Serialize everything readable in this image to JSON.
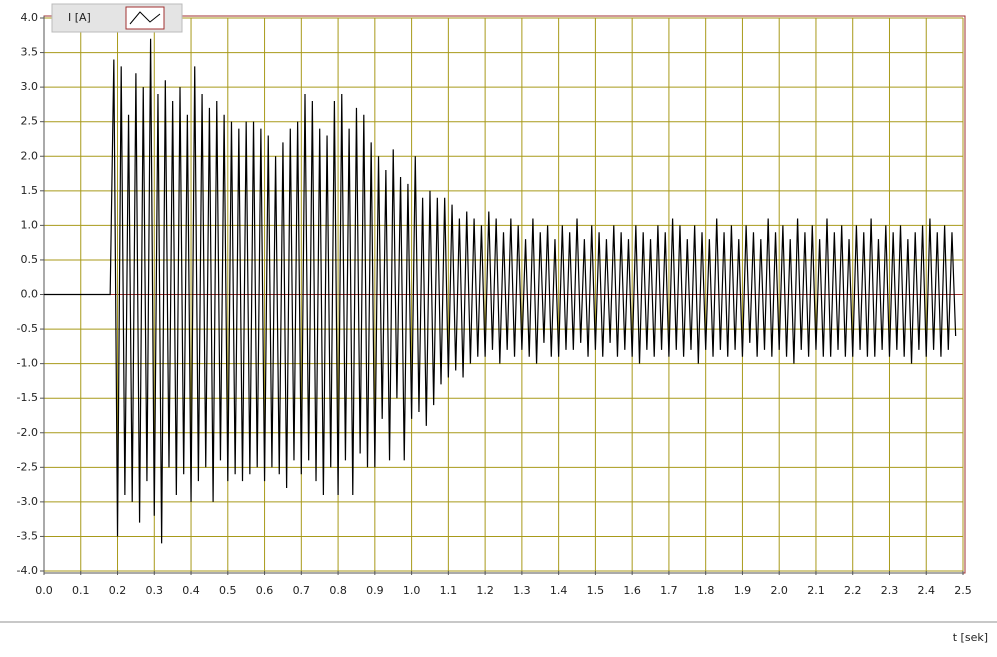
{
  "chart_data": {
    "type": "line",
    "xlabel": "t [sek]",
    "x": [
      0,
      0.18,
      0.19,
      0.2,
      0.21,
      0.22,
      0.23,
      0.24,
      0.25,
      0.26,
      0.27,
      0.28,
      0.29,
      0.3,
      0.31,
      0.32,
      0.33,
      0.34,
      0.35,
      0.36,
      0.37,
      0.38,
      0.39,
      0.4,
      0.41,
      0.42,
      0.43,
      0.44,
      0.45,
      0.46,
      0.47,
      0.48,
      0.49,
      0.5,
      0.51,
      0.52,
      0.53,
      0.54,
      0.55,
      0.56,
      0.57,
      0.58,
      0.59,
      0.6,
      0.61,
      0.62,
      0.63,
      0.64,
      0.65,
      0.66,
      0.67,
      0.68,
      0.69,
      0.7,
      0.71,
      0.72,
      0.73,
      0.74,
      0.75,
      0.76,
      0.77,
      0.78,
      0.79,
      0.8,
      0.81,
      0.82,
      0.83,
      0.84,
      0.85,
      0.86,
      0.87,
      0.88,
      0.89,
      0.9,
      0.91,
      0.92,
      0.93,
      0.94,
      0.95,
      0.96,
      0.97,
      0.98,
      0.99,
      1,
      1.01,
      1.02,
      1.03,
      1.04,
      1.05,
      1.06,
      1.07,
      1.08,
      1.09,
      1.1,
      1.11,
      1.12,
      1.13,
      1.14,
      1.15,
      1.16,
      1.17,
      1.18,
      1.19,
      1.2,
      1.21,
      1.22,
      1.23,
      1.24,
      1.25,
      1.26,
      1.27,
      1.28,
      1.29,
      1.3,
      1.31,
      1.32,
      1.33,
      1.34,
      1.35,
      1.36,
      1.37,
      1.38,
      1.39,
      1.4,
      1.41,
      1.42,
      1.43,
      1.44,
      1.45,
      1.46,
      1.47,
      1.48,
      1.49,
      1.5,
      1.51,
      1.52,
      1.53,
      1.54,
      1.55,
      1.56,
      1.57,
      1.58,
      1.59,
      1.6,
      1.61,
      1.62,
      1.63,
      1.64,
      1.65,
      1.66,
      1.67,
      1.68,
      1.69,
      1.7,
      1.71,
      1.72,
      1.73,
      1.74,
      1.75,
      1.76,
      1.77,
      1.78,
      1.79,
      1.8,
      1.81,
      1.82,
      1.83,
      1.84,
      1.85,
      1.86,
      1.87,
      1.88,
      1.89,
      1.9,
      1.91,
      1.92,
      1.93,
      1.94,
      1.95,
      1.96,
      1.97,
      1.98,
      1.99,
      2,
      2.01,
      2.02,
      2.03,
      2.04,
      2.05,
      2.06,
      2.07,
      2.08,
      2.09,
      2.1,
      2.11,
      2.12,
      2.13,
      2.14,
      2.15,
      2.16,
      2.17,
      2.18,
      2.19,
      2.2,
      2.21,
      2.22,
      2.23,
      2.24,
      2.25,
      2.26,
      2.27,
      2.28,
      2.29,
      2.3,
      2.31,
      2.32,
      2.33,
      2.34,
      2.35,
      2.36,
      2.37,
      2.38,
      2.39,
      2.4,
      2.41,
      2.42,
      2.43,
      2.44,
      2.45,
      2.46,
      2.47,
      2.48
    ],
    "series": [
      {
        "name": "I [A]",
        "color": "#000000",
        "values": [
          0,
          0,
          3.4,
          -3.5,
          3.3,
          -2.9,
          2.6,
          -3.0,
          3.2,
          -3.3,
          3.0,
          -2.7,
          3.7,
          -3.2,
          2.9,
          -3.6,
          3.1,
          -2.5,
          2.8,
          -2.9,
          3.0,
          -2.6,
          2.6,
          -3.0,
          3.3,
          -2.7,
          2.9,
          -2.5,
          2.7,
          -3.0,
          2.8,
          -2.4,
          2.6,
          -2.7,
          2.5,
          -2.6,
          2.4,
          -2.7,
          2.5,
          -2.6,
          2.5,
          -2.5,
          2.4,
          -2.7,
          2.3,
          -2.5,
          2.0,
          -2.6,
          2.2,
          -2.8,
          2.4,
          -2.4,
          2.5,
          -2.6,
          2.9,
          -2.4,
          2.8,
          -2.7,
          2.4,
          -2.9,
          2.3,
          -2.5,
          2.8,
          -2.9,
          2.9,
          -2.4,
          2.4,
          -2.9,
          2.7,
          -2.3,
          2.6,
          -2.5,
          2.2,
          -2.5,
          2.0,
          -1.8,
          1.8,
          -2.4,
          2.1,
          -1.5,
          1.7,
          -2.4,
          1.6,
          -1.8,
          2.0,
          -1.7,
          1.4,
          -1.9,
          1.5,
          -1.6,
          1.4,
          -1.3,
          1.4,
          -1.2,
          1.3,
          -1.1,
          1.1,
          -1.2,
          1.2,
          -1.0,
          1.1,
          -0.9,
          1.0,
          -0.9,
          1.2,
          -0.8,
          1.1,
          -1.0,
          0.9,
          -0.8,
          1.1,
          -0.9,
          1.0,
          -0.8,
          0.8,
          -0.9,
          1.1,
          -1.0,
          0.9,
          -0.7,
          1.0,
          -0.9,
          0.8,
          -0.9,
          1.0,
          -0.8,
          0.9,
          -0.8,
          1.1,
          -0.7,
          0.8,
          -0.9,
          1.0,
          -0.8,
          0.9,
          -0.9,
          0.8,
          -0.7,
          1.0,
          -0.9,
          0.9,
          -0.8,
          0.8,
          -0.9,
          1.0,
          -1.0,
          0.9,
          -0.8,
          0.8,
          -0.9,
          1.0,
          -0.8,
          0.9,
          -0.9,
          1.1,
          -0.8,
          1.0,
          -0.9,
          0.8,
          -0.8,
          1.0,
          -1.0,
          0.9,
          -0.8,
          0.8,
          -0.9,
          1.1,
          -0.8,
          0.9,
          -0.9,
          1.0,
          -0.8,
          0.8,
          -0.9,
          1.0,
          -0.7,
          0.9,
          -0.9,
          0.8,
          -0.8,
          1.1,
          -0.9,
          0.9,
          -0.8,
          1.0,
          -0.9,
          0.8,
          -1.0,
          1.1,
          -0.8,
          0.9,
          -0.9,
          1.0,
          -0.8,
          0.8,
          -0.9,
          1.1,
          -0.9,
          0.9,
          -0.8,
          1.0,
          -0.9,
          0.8,
          -0.9,
          1.0,
          -0.8,
          0.9,
          -0.9,
          1.1,
          -0.9,
          0.8,
          -0.8,
          1.0,
          -0.9,
          0.9,
          -0.8,
          1.0,
          -0.9,
          0.8,
          -1.0,
          0.9,
          -0.8,
          1.0,
          -0.9,
          1.1,
          -0.8,
          0.9,
          -0.9,
          1.0,
          -0.8,
          0.9,
          -0.6
        ]
      }
    ],
    "xlim": [
      0,
      2.5
    ],
    "xticks": [
      {
        "value": 0,
        "label": "0.0"
      },
      0.1,
      0.2,
      0.3,
      0.4,
      0.5,
      0.6,
      0.7,
      0.8,
      0.9,
      {
        "value": 1,
        "label": "1.0"
      },
      1.1,
      1.2,
      1.3,
      1.4,
      1.5,
      1.6,
      1.7,
      1.8,
      1.9,
      {
        "value": 2,
        "label": "2.0"
      },
      2.1,
      2.2,
      2.3,
      2.4,
      2.5
    ],
    "ylim": [
      -4,
      4
    ],
    "yticks": [
      {
        "value": -4,
        "label": "-4.0"
      },
      -3.5,
      {
        "value": -3,
        "label": "-3.0"
      },
      -2.5,
      {
        "value": -2,
        "label": "-2.0"
      },
      -1.5,
      {
        "value": -1,
        "label": "-1.0"
      },
      -0.5,
      {
        "value": 0,
        "label": "0.0"
      },
      0.5,
      {
        "value": 1,
        "label": "1.0"
      },
      1.5,
      {
        "value": 2,
        "label": "2.0"
      },
      2.5,
      {
        "value": 3,
        "label": "3.0"
      },
      3.5,
      {
        "value": 4,
        "label": "4.0"
      }
    ],
    "grid": true,
    "grid_color": "#a89a1a"
  }
}
